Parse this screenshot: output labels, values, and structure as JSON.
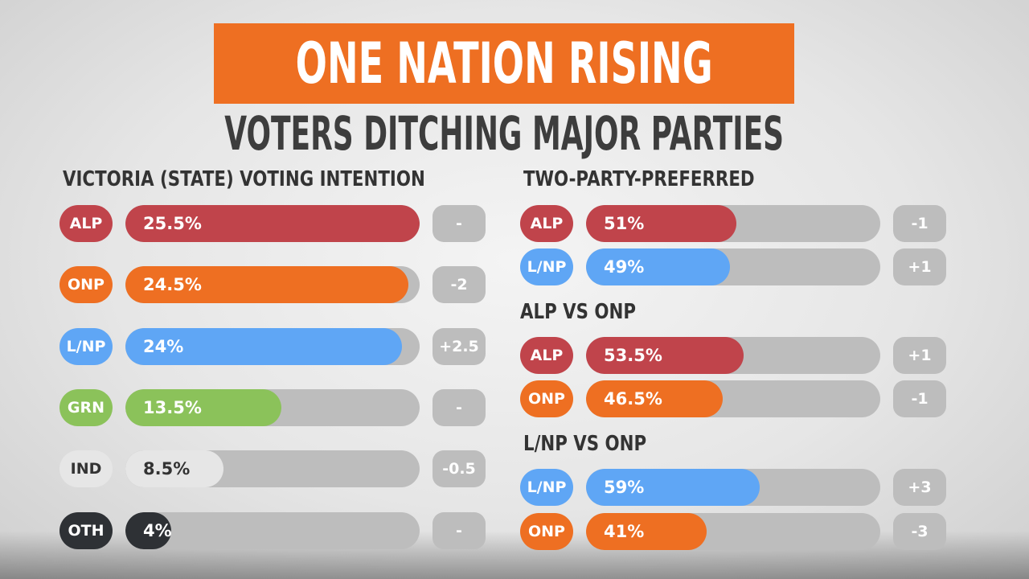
{
  "header": {
    "title": "ONE NATION RISING",
    "subtitle": "VOTERS DITCHING MAJOR PARTIES"
  },
  "colors": {
    "ALP": "#c0444b",
    "ONP": "#ee6f22",
    "L/NP": "#5fa6f5",
    "GRN": "#8bc25a",
    "IND": "#e6e6e6",
    "OTH": "#2e3135",
    "track": "#bdbdbd"
  },
  "chart_data": [
    {
      "type": "bar",
      "title": "VICTORIA (STATE) VOTING INTENTION",
      "categories": [
        "ALP",
        "ONP",
        "L/NP",
        "GRN",
        "IND",
        "OTH"
      ],
      "values": [
        25.5,
        24.5,
        24,
        13.5,
        8.5,
        4
      ],
      "value_labels": [
        "25.5%",
        "24.5%",
        "24%",
        "13.5%",
        "8.5%",
        "4%"
      ],
      "changes": [
        "-",
        "-2",
        "+2.5",
        "-",
        "-0.5",
        "-"
      ],
      "xlim": [
        0,
        25.5
      ]
    },
    {
      "type": "bar",
      "title": "TWO-PARTY-PREFERRED",
      "categories": [
        "ALP",
        "L/NP"
      ],
      "values": [
        51,
        49
      ],
      "value_labels": [
        "51%",
        "49%"
      ],
      "changes": [
        "-1",
        "+1"
      ],
      "xlim": [
        0,
        100
      ]
    },
    {
      "type": "bar",
      "title": "ALP VS ONP",
      "categories": [
        "ALP",
        "ONP"
      ],
      "values": [
        53.5,
        46.5
      ],
      "value_labels": [
        "53.5%",
        "46.5%"
      ],
      "changes": [
        "+1",
        "-1"
      ],
      "xlim": [
        0,
        100
      ]
    },
    {
      "type": "bar",
      "title": "L/NP VS ONP",
      "categories": [
        "L/NP",
        "ONP"
      ],
      "values": [
        59,
        41
      ],
      "value_labels": [
        "59%",
        "41%"
      ],
      "changes": [
        "+3",
        "-3"
      ],
      "xlim": [
        0,
        100
      ]
    }
  ]
}
